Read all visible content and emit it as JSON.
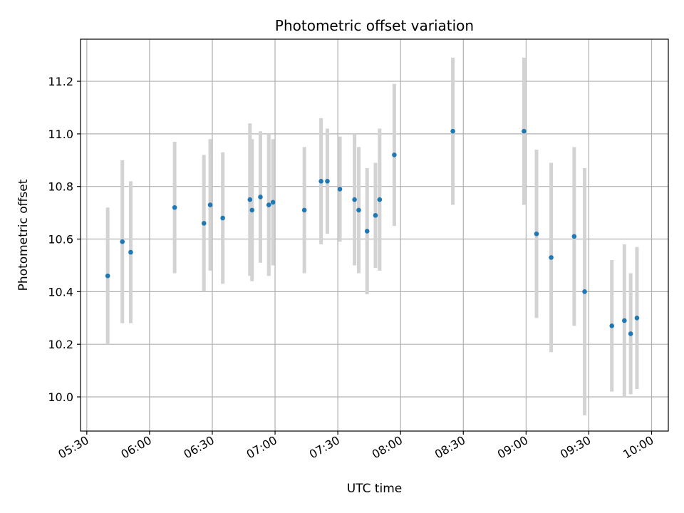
{
  "chart_data": {
    "type": "scatter",
    "title": "Photometric offset variation",
    "xlabel": "UTC time",
    "ylabel": "Photometric offset",
    "x_ticks": [
      "05:30",
      "06:00",
      "06:30",
      "07:00",
      "07:30",
      "08:00",
      "08:30",
      "09:00",
      "09:30",
      "10:00"
    ],
    "y_ticks": [
      "10.0",
      "10.2",
      "10.4",
      "10.6",
      "10.8",
      "11.0",
      "11.2"
    ],
    "xlim": [
      "05:27",
      "10:08"
    ],
    "ylim": [
      9.87,
      11.36
    ],
    "grid": true,
    "point_color": "#1f77b4",
    "errorbar_color": "#d3d3d3",
    "points": [
      {
        "time": "05:40",
        "y": 10.46,
        "err": 0.26
      },
      {
        "time": "05:47",
        "y": 10.59,
        "err": 0.31
      },
      {
        "time": "05:51",
        "y": 10.55,
        "err": 0.27
      },
      {
        "time": "06:12",
        "y": 10.72,
        "err": 0.25
      },
      {
        "time": "06:26",
        "y": 10.66,
        "err": 0.26
      },
      {
        "time": "06:29",
        "y": 10.73,
        "err": 0.25
      },
      {
        "time": "06:35",
        "y": 10.68,
        "err": 0.25
      },
      {
        "time": "06:48",
        "y": 10.75,
        "err": 0.29
      },
      {
        "time": "06:49",
        "y": 10.71,
        "err": 0.27
      },
      {
        "time": "06:53",
        "y": 10.76,
        "err": 0.25
      },
      {
        "time": "06:57",
        "y": 10.73,
        "err": 0.27
      },
      {
        "time": "06:59",
        "y": 10.74,
        "err": 0.24
      },
      {
        "time": "07:14",
        "y": 10.71,
        "err": 0.24
      },
      {
        "time": "07:22",
        "y": 10.82,
        "err": 0.24
      },
      {
        "time": "07:25",
        "y": 10.82,
        "err": 0.2
      },
      {
        "time": "07:31",
        "y": 10.79,
        "err": 0.2
      },
      {
        "time": "07:38",
        "y": 10.75,
        "err": 0.25
      },
      {
        "time": "07:40",
        "y": 10.71,
        "err": 0.24
      },
      {
        "time": "07:44",
        "y": 10.63,
        "err": 0.24
      },
      {
        "time": "07:48",
        "y": 10.69,
        "err": 0.2
      },
      {
        "time": "07:50",
        "y": 10.75,
        "err": 0.27
      },
      {
        "time": "07:57",
        "y": 10.92,
        "err": 0.27
      },
      {
        "time": "08:25",
        "y": 11.01,
        "err": 0.28
      },
      {
        "time": "08:59",
        "y": 11.01,
        "err": 0.28
      },
      {
        "time": "09:05",
        "y": 10.62,
        "err": 0.32
      },
      {
        "time": "09:12",
        "y": 10.53,
        "err": 0.36
      },
      {
        "time": "09:23",
        "y": 10.61,
        "err": 0.34
      },
      {
        "time": "09:28",
        "y": 10.4,
        "err": 0.47
      },
      {
        "time": "09:41",
        "y": 10.27,
        "err": 0.25
      },
      {
        "time": "09:47",
        "y": 10.29,
        "err": 0.29
      },
      {
        "time": "09:50",
        "y": 10.24,
        "err": 0.23
      },
      {
        "time": "09:53",
        "y": 10.3,
        "err": 0.27
      }
    ]
  }
}
